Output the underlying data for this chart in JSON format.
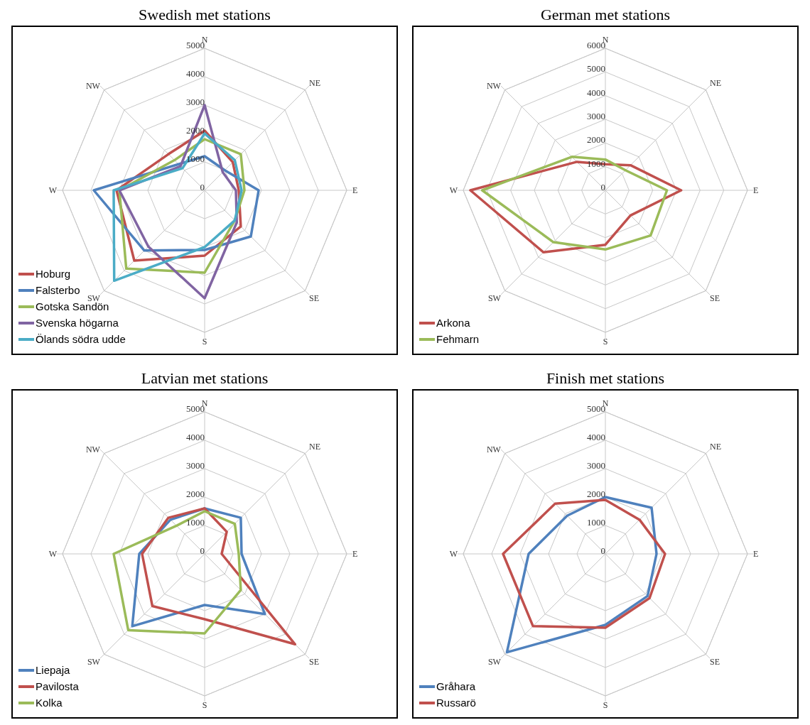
{
  "chart_data": [
    {
      "type": "radar",
      "title": "Swedish met stations",
      "categories": [
        "N",
        "NE",
        "E",
        "SE",
        "S",
        "SW",
        "W",
        "NW"
      ],
      "ylim": [
        0,
        5000
      ],
      "yticks": [
        0,
        1000,
        2000,
        3000,
        4000,
        5000
      ],
      "grid": true,
      "legend": "bottom left",
      "series": [
        {
          "name": "Hoburg",
          "color": "#c0504d",
          "values": [
            2100,
            1400,
            1200,
            1800,
            2300,
            3500,
            3100,
            1800
          ]
        },
        {
          "name": "Falsterbo",
          "color": "#4f81bd",
          "values": [
            1200,
            1000,
            1900,
            2300,
            2100,
            3000,
            3900,
            1300
          ]
        },
        {
          "name": "Gotska Sandön",
          "color": "#9bbb59",
          "values": [
            1800,
            1800,
            1400,
            1500,
            2900,
            3900,
            3000,
            1500
          ]
        },
        {
          "name": "Svenska högarna",
          "color": "#8064a2",
          "values": [
            3000,
            900,
            1100,
            1600,
            3800,
            2800,
            3000,
            1200
          ]
        },
        {
          "name": "Ölands södra udde",
          "color": "#4bacc6",
          "values": [
            2000,
            1500,
            1300,
            1500,
            2000,
            4500,
            3200,
            1100
          ]
        }
      ]
    },
    {
      "type": "radar",
      "title": "German met stations",
      "categories": [
        "N",
        "NE",
        "E",
        "SE",
        "S",
        "SW",
        "W",
        "NW"
      ],
      "ylim": [
        0,
        6000
      ],
      "yticks": [
        0,
        1000,
        2000,
        3000,
        4000,
        5000,
        6000
      ],
      "grid": true,
      "legend": "bottom left",
      "series": [
        {
          "name": "Arkona",
          "color": "#c0504d",
          "values": [
            1100,
            1500,
            3200,
            1500,
            2300,
            3700,
            5700,
            1700
          ]
        },
        {
          "name": "Fehmarn",
          "color": "#9bbb59",
          "values": [
            1300,
            1200,
            2600,
            2700,
            2500,
            3100,
            5200,
            2000
          ]
        }
      ]
    },
    {
      "type": "radar",
      "title": "Latvian met stations",
      "categories": [
        "N",
        "NE",
        "E",
        "SE",
        "S",
        "SW",
        "W",
        "NW"
      ],
      "ylim": [
        0,
        5000
      ],
      "yticks": [
        0,
        1000,
        2000,
        3000,
        4000,
        5000
      ],
      "grid": true,
      "legend": "bottom left",
      "series": [
        {
          "name": "Liepaja",
          "color": "#4f81bd",
          "values": [
            1600,
            1800,
            1300,
            3000,
            1800,
            3600,
            2300,
            1700
          ]
        },
        {
          "name": "Pavilosta",
          "color": "#c0504d",
          "values": [
            1600,
            1100,
            600,
            4500,
            2300,
            2600,
            2200,
            1800
          ]
        },
        {
          "name": "Kolka",
          "color": "#9bbb59",
          "values": [
            1500,
            1500,
            1200,
            1800,
            2800,
            3800,
            3200,
            1400
          ]
        }
      ]
    },
    {
      "type": "radar",
      "title": "Finish met stations",
      "categories": [
        "N",
        "NE",
        "E",
        "SE",
        "S",
        "SW",
        "W",
        "NW"
      ],
      "ylim": [
        0,
        5000
      ],
      "yticks": [
        0,
        1000,
        2000,
        3000,
        4000,
        5000
      ],
      "grid": true,
      "legend": "bottom left",
      "series": [
        {
          "name": "Gråhara",
          "color": "#4f81bd",
          "values": [
            2000,
            2300,
            1800,
            2100,
            2500,
            4900,
            2700,
            1900
          ]
        },
        {
          "name": "Russarö",
          "color": "#c0504d",
          "values": [
            1900,
            1700,
            2100,
            2200,
            2600,
            3600,
            3600,
            2500
          ]
        }
      ]
    }
  ]
}
